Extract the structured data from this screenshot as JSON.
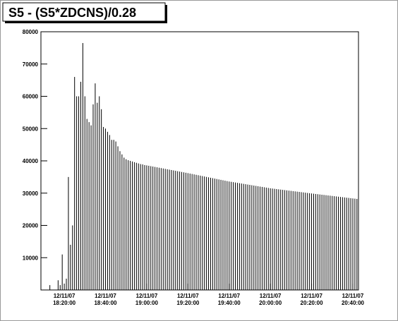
{
  "chart_data": {
    "type": "bar",
    "title": "S5 - (S5*ZDCNS)/0.28",
    "color": "#000000",
    "x": [
      "18:13:00",
      "18:17:00",
      "18:18:00",
      "18:19:00",
      "18:21:00",
      "18:22:00",
      "18:23:00",
      "18:24:00",
      "18:25:00",
      "18:26:00",
      "18:27:00",
      "18:28:00",
      "18:29:00",
      "18:30:00",
      "18:31:00",
      "18:32:00",
      "18:33:00",
      "18:34:00",
      "18:35:00",
      "18:36:00",
      "18:37:00",
      "18:38:00",
      "18:39:00",
      "18:40:00",
      "18:41:00",
      "18:42:00",
      "18:43:00",
      "18:44:00",
      "18:45:00",
      "18:46:00",
      "18:47:00",
      "18:48:00",
      "18:49:00",
      "18:50:00",
      "18:51:00",
      "18:52:00",
      "18:53:00",
      "18:54:00",
      "18:55:00",
      "18:56:00",
      "18:57:00",
      "18:58:00",
      "18:59:00",
      "19:00:00",
      "19:01:00",
      "19:02:00",
      "19:03:00",
      "19:04:00",
      "19:05:00",
      "19:06:00",
      "19:07:00",
      "19:08:00",
      "19:09:00",
      "19:10:00",
      "19:11:00",
      "19:12:00",
      "19:13:00",
      "19:14:00",
      "19:15:00",
      "19:16:00",
      "19:17:00",
      "19:18:00",
      "19:19:00",
      "19:20:00",
      "19:21:00",
      "19:22:00",
      "19:23:00",
      "19:24:00",
      "19:25:00",
      "19:26:00",
      "19:27:00",
      "19:28:00",
      "19:29:00",
      "19:30:00",
      "19:31:00",
      "19:32:00",
      "19:33:00",
      "19:34:00",
      "19:35:00",
      "19:36:00",
      "19:37:00",
      "19:38:00",
      "19:39:00",
      "19:40:00",
      "19:41:00",
      "19:42:00",
      "19:43:00",
      "19:44:00",
      "19:45:00",
      "19:46:00",
      "19:47:00",
      "19:48:00",
      "19:49:00",
      "19:50:00",
      "19:51:00",
      "19:52:00",
      "19:53:00",
      "19:54:00",
      "19:55:00",
      "19:56:00",
      "19:57:00",
      "19:58:00",
      "19:59:00",
      "20:00:00",
      "20:01:00",
      "20:02:00",
      "20:03:00",
      "20:04:00",
      "20:05:00",
      "20:06:00",
      "20:07:00",
      "20:08:00",
      "20:09:00",
      "20:10:00",
      "20:11:00",
      "20:12:00",
      "20:13:00",
      "20:14:00",
      "20:15:00",
      "20:16:00",
      "20:17:00",
      "20:18:00",
      "20:19:00",
      "20:20:00",
      "20:21:00",
      "20:22:00",
      "20:23:00",
      "20:24:00",
      "20:25:00",
      "20:26:00",
      "20:27:00",
      "20:28:00",
      "20:29:00",
      "20:30:00",
      "20:31:00",
      "20:32:00",
      "20:33:00",
      "20:34:00",
      "20:35:00",
      "20:36:00",
      "20:37:00",
      "20:38:00",
      "20:39:00",
      "20:40:00",
      "20:41:00",
      "20:42:00"
    ],
    "values": [
      1500,
      3000,
      1500,
      11000,
      3500,
      35000,
      14000,
      20000,
      66000,
      60000,
      60000,
      64500,
      76500,
      60000,
      53000,
      52000,
      51000,
      57500,
      64000,
      58000,
      60000,
      56000,
      50500,
      50000,
      49000,
      48000,
      46500,
      46500,
      46000,
      44500,
      43000,
      42000,
      41000,
      40500,
      40200,
      40000,
      39800,
      39600,
      39400,
      39200,
      39000,
      38900,
      38700,
      38600,
      38480,
      38360,
      38240,
      38120,
      38000,
      37880,
      37760,
      37640,
      37520,
      37400,
      37280,
      37160,
      37040,
      36920,
      36800,
      36680,
      36560,
      36440,
      36320,
      36200,
      36070,
      35940,
      35810,
      35680,
      35550,
      35420,
      35290,
      35160,
      35030,
      34900,
      34770,
      34640,
      34510,
      34380,
      34250,
      34120,
      33990,
      33860,
      33730,
      33600,
      33500,
      33400,
      33290,
      33190,
      33080,
      32980,
      32870,
      32770,
      32660,
      32560,
      32450,
      32350,
      32240,
      32140,
      32030,
      31930,
      31820,
      31720,
      31610,
      31500,
      31420,
      31340,
      31260,
      31180,
      31100,
      31020,
      30940,
      30860,
      30780,
      30700,
      30620,
      30540,
      30460,
      30380,
      30300,
      30220,
      30140,
      30060,
      29980,
      29900,
      29820,
      29740,
      29670,
      29590,
      29510,
      29440,
      29360,
      29280,
      29210,
      29130,
      29050,
      28980,
      28900,
      28820,
      28750,
      28670,
      28590,
      28520,
      28440,
      28360,
      28290,
      28210
    ],
    "xlim": [
      "18:08:40",
      "20:42:45"
    ],
    "xticks": [
      {
        "value": "18:20:00",
        "label": [
          "12/11/07",
          "18:20:00"
        ]
      },
      {
        "value": "18:40:00",
        "label": [
          "12/11/07",
          "18:40:00"
        ]
      },
      {
        "value": "19:00:00",
        "label": [
          "12/11/07",
          "19:00:00"
        ]
      },
      {
        "value": "19:20:00",
        "label": [
          "12/11/07",
          "19:20:00"
        ]
      },
      {
        "value": "19:40:00",
        "label": [
          "12/11/07",
          "19:40:00"
        ]
      },
      {
        "value": "20:00:00",
        "label": [
          "12/11/07",
          "20:00:00"
        ]
      },
      {
        "value": "20:20:00",
        "label": [
          "12/11/07",
          "20:20:00"
        ]
      },
      {
        "value": "20:40:00",
        "label": [
          "12/11/07",
          "20:40:00"
        ]
      }
    ],
    "ylim": [
      0,
      80000
    ],
    "yticks": [
      10000,
      20000,
      30000,
      40000,
      50000,
      60000,
      70000,
      80000
    ]
  }
}
